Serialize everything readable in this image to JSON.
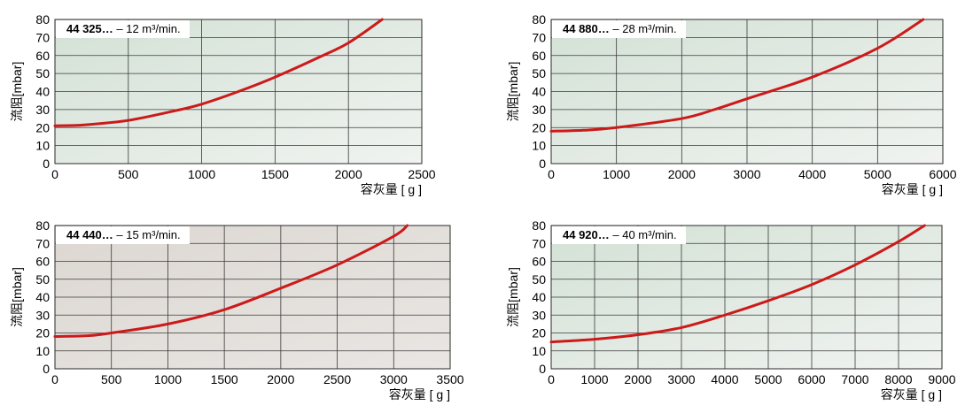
{
  "chart_data": [
    {
      "type": "line",
      "model": "44 325…",
      "rate": " – 12 m³/min.",
      "ylabel": "流阻[mbar]",
      "xlabel": "容灰量 [ g ]",
      "xlim": [
        0,
        2500
      ],
      "ylim": [
        0,
        80
      ],
      "x_ticks": [
        0,
        500,
        1000,
        1500,
        2000,
        2500
      ],
      "y_ticks": [
        0,
        10,
        20,
        30,
        40,
        50,
        60,
        70,
        80
      ],
      "grid": true,
      "background": "green-gray",
      "series": [
        {
          "color": "#cc1a1a",
          "x": [
            0,
            200,
            500,
            800,
            1000,
            1250,
            1500,
            1800,
            2000,
            2230
          ],
          "y": [
            21,
            21.5,
            24,
            29,
            33,
            40,
            48,
            59,
            67,
            80
          ]
        }
      ]
    },
    {
      "type": "line",
      "model": "44 880…",
      "rate": " – 28 m³/min.",
      "ylabel": "流阻[mbar]",
      "xlabel": "容灰量 [ g ]",
      "xlim": [
        0,
        6000
      ],
      "ylim": [
        0,
        80
      ],
      "x_ticks": [
        0,
        1000,
        2000,
        3000,
        4000,
        5000,
        6000
      ],
      "y_ticks": [
        0,
        10,
        20,
        30,
        40,
        50,
        60,
        70,
        80
      ],
      "grid": true,
      "background": "green-gray",
      "series": [
        {
          "color": "#cc1a1a",
          "x": [
            0,
            500,
            1000,
            2000,
            2500,
            3000,
            4000,
            5000,
            5700
          ],
          "y": [
            18,
            18.5,
            20,
            25,
            30,
            36,
            48,
            64,
            80
          ]
        }
      ]
    },
    {
      "type": "line",
      "model": "44 440…",
      "rate": " – 15 m³/min.",
      "ylabel": "流阻[mbar]",
      "xlabel": "容灰量 [ g ]",
      "xlim": [
        0,
        3500
      ],
      "ylim": [
        0,
        80
      ],
      "x_ticks": [
        0,
        500,
        1000,
        1500,
        2000,
        2500,
        3000,
        3500
      ],
      "y_ticks": [
        0,
        10,
        20,
        30,
        40,
        50,
        60,
        70,
        80
      ],
      "grid": true,
      "background": "beige-gray",
      "series": [
        {
          "color": "#cc1a1a",
          "x": [
            0,
            300,
            500,
            1000,
            1500,
            2000,
            2500,
            3000,
            3120
          ],
          "y": [
            18,
            18.5,
            20,
            25,
            33,
            45,
            58,
            74,
            80
          ]
        }
      ]
    },
    {
      "type": "line",
      "model": "44 920…",
      "rate": " – 40 m³/min.",
      "ylabel": "流阻[mbar]",
      "xlabel": "容灰量 [ g ]",
      "xlim": [
        0,
        9000
      ],
      "ylim": [
        0,
        80
      ],
      "x_ticks": [
        0,
        1000,
        2000,
        3000,
        4000,
        5000,
        6000,
        7000,
        8000,
        9000
      ],
      "y_ticks": [
        0,
        10,
        20,
        30,
        40,
        50,
        60,
        70,
        80
      ],
      "grid": true,
      "background": "green-gray",
      "series": [
        {
          "color": "#cc1a1a",
          "x": [
            0,
            1000,
            2000,
            3000,
            4000,
            5000,
            6000,
            7000,
            8000,
            8600
          ],
          "y": [
            15,
            16.5,
            19,
            23,
            30,
            38,
            47,
            58,
            71,
            80
          ]
        }
      ]
    }
  ],
  "colors": {
    "curve": "#cc1a1a",
    "grid": "#3a3a3a",
    "bg_green_top": "#d4e2d6",
    "bg_green_bottom": "#eef2ee",
    "bg_beige_top": "#ddd8d2",
    "bg_beige_bottom": "#e8e5e1"
  }
}
